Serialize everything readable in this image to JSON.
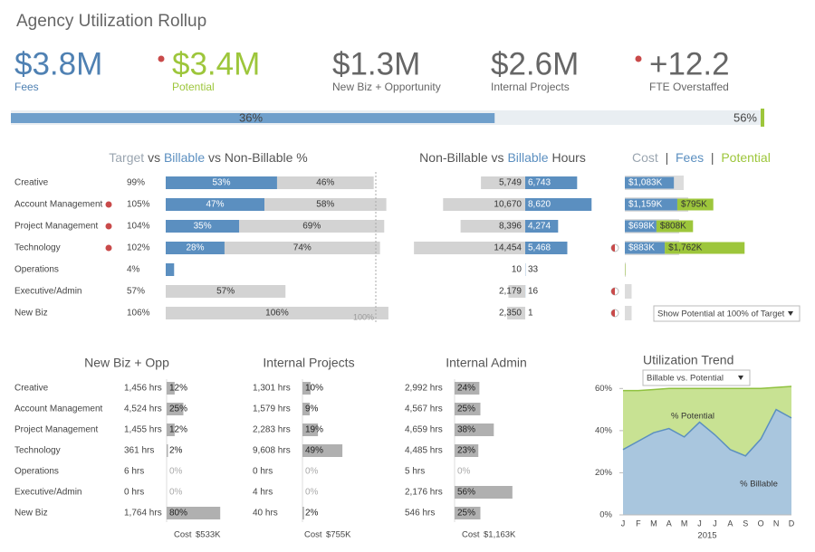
{
  "header": {
    "title": "Agency Utilization Rollup"
  },
  "kpis": [
    {
      "value": "$3.8M",
      "label": "Fees",
      "color": "#4f81b3",
      "flag": false
    },
    {
      "value": "$3.4M",
      "label": "Potential",
      "color": "#9dc63b",
      "flag": true
    },
    {
      "value": "$1.3M",
      "label": "New Biz + Opportunity",
      "color": "#666666",
      "flag": false
    },
    {
      "value": "$2.6M",
      "label": "Internal Projects",
      "color": "#666666",
      "flag": false
    },
    {
      "value": "+12.2",
      "label": "FTE Overstaffed",
      "color": "#666666",
      "flag": true
    }
  ],
  "progress": {
    "values": [
      36,
      56
    ],
    "value_labels": [
      "36%",
      "56%"
    ],
    "colors": [
      "#6f9fcb",
      "#9dc63b"
    ]
  },
  "controls": {
    "potential_filter": "Show Potential at 100% of Target",
    "trend_filter": "Billable vs. Potential"
  },
  "chart_data": [
    {
      "type": "stacked_bar",
      "title": [
        {
          "text": "Target",
          "color": "#9aa5b0"
        },
        {
          "text": " vs ",
          "color": "#555555"
        },
        {
          "text": "Billable",
          "color": "#5b8fc0"
        },
        {
          "text": " vs Non-Billable %",
          "color": "#555555"
        }
      ],
      "categories": [
        "Creative",
        "Account Management",
        "Project Management",
        "Technology",
        "Operations",
        "Executive/Admin",
        "New Biz"
      ],
      "totals": [
        "99%",
        "105%",
        "104%",
        "102%",
        "4%",
        "57%",
        "106%"
      ],
      "flags": [
        false,
        true,
        true,
        true,
        false,
        false,
        false
      ],
      "target": {
        "value": 100,
        "label": "100%"
      },
      "series": [
        {
          "color": "#5b8fc0",
          "values": [
            53,
            47,
            35,
            28,
            4,
            0,
            0
          ],
          "value_labels": [
            "53%",
            "47%",
            "35%",
            "28%",
            null,
            null,
            null
          ]
        },
        {
          "color": "#d3d3d3",
          "values": [
            46,
            58,
            69,
            74,
            0,
            57,
            106
          ],
          "value_labels": [
            "46%",
            "58%",
            "69%",
            "74%",
            null,
            "57%",
            "106%"
          ]
        }
      ]
    },
    {
      "type": "diverging_bar",
      "title": [
        {
          "text": "Non-Billable vs ",
          "color": "#555555"
        },
        {
          "text": "Billable",
          "color": "#5b8fc0"
        },
        {
          "text": " Hours",
          "color": "#555555"
        }
      ],
      "series": [
        {
          "color": "#d3d3d3",
          "values": [
            5749,
            10670,
            8396,
            14454,
            10,
            2179,
            2350
          ],
          "value_labels": [
            "5,749",
            "10,670",
            "8,396",
            "14,454",
            "10",
            "2,179",
            "2,350"
          ]
        },
        {
          "color": "#5b8fc0",
          "values": [
            6743,
            8620,
            4274,
            5468,
            33,
            16,
            1
          ],
          "value_labels": [
            "6,743",
            "8,620",
            "4,274",
            "5,468",
            "33",
            "16",
            "1"
          ]
        }
      ]
    },
    {
      "type": "stacked_bar",
      "title": [
        {
          "text": "Cost",
          "color": "#9aa5b0"
        },
        {
          "text": "  |  ",
          "color": "#555555"
        },
        {
          "text": "Fees",
          "color": "#5b8fc0"
        },
        {
          "text": "  |  ",
          "color": "#555555"
        },
        {
          "text": "Potential",
          "color": "#9dc63b"
        }
      ],
      "background": {
        "color": "#dcdcdc",
        "values": [
          1300,
          1400,
          1200,
          1200,
          20,
          150,
          150
        ]
      },
      "series": [
        {
          "color": "#5b8fc0",
          "values": [
            1083,
            1159,
            698,
            883,
            0,
            0,
            0
          ],
          "value_labels": [
            "$1,083K",
            "$1,159K",
            "$698K",
            "$883K",
            null,
            null,
            null
          ]
        },
        {
          "color": "#9dc63b",
          "values": [
            0,
            795,
            808,
            1762,
            10,
            0,
            0
          ],
          "value_labels": [
            null,
            "$795K",
            "$808K",
            "$1,762K",
            null,
            null,
            null
          ]
        }
      ]
    },
    {
      "type": "bar",
      "title": "New Biz + Opp",
      "color": "#b0b0b0",
      "categories": [
        "Creative",
        "Account Management",
        "Project Management",
        "Technology",
        "Operations",
        "Executive/Admin",
        "New Biz"
      ],
      "hours": [
        "1,456 hrs",
        "4,524 hrs",
        "1,455 hrs",
        "361 hrs",
        "6 hrs",
        "0 hrs",
        "1,764 hrs"
      ],
      "values": [
        12,
        25,
        12,
        2,
        0,
        0,
        80
      ],
      "value_labels": [
        "12%",
        "25%",
        "12%",
        "2%",
        "0%",
        "0%",
        "80%"
      ],
      "cost_label": "Cost",
      "cost": "$533K"
    },
    {
      "type": "bar",
      "title": "Internal Projects",
      "color": "#b0b0b0",
      "hours": [
        "1,301 hrs",
        "1,579 hrs",
        "2,283 hrs",
        "9,608 hrs",
        "0 hrs",
        "4 hrs",
        "40 hrs"
      ],
      "values": [
        10,
        9,
        19,
        49,
        0,
        0,
        2
      ],
      "value_labels": [
        "10%",
        "9%",
        "19%",
        "49%",
        "0%",
        "0%",
        "2%"
      ],
      "cost_label": "Cost",
      "cost": "$755K"
    },
    {
      "type": "bar",
      "title": "Internal Admin",
      "color": "#b0b0b0",
      "hours": [
        "2,992 hrs",
        "4,567 hrs",
        "4,659 hrs",
        "4,485 hrs",
        "5 hrs",
        "2,176 hrs",
        "546 hrs"
      ],
      "values": [
        24,
        25,
        38,
        23,
        0,
        56,
        25
      ],
      "value_labels": [
        "24%",
        "25%",
        "38%",
        "23%",
        "0%",
        "56%",
        "25%"
      ],
      "cost_label": "Cost",
      "cost": "$1,163K"
    },
    {
      "type": "area",
      "title": "Utilization Trend",
      "categories": [
        "J",
        "F",
        "M",
        "A",
        "M",
        "J",
        "J",
        "A",
        "S",
        "O",
        "N",
        "D"
      ],
      "xlabel": "2015",
      "ylim": [
        0,
        67
      ],
      "yticks": [
        {
          "value": 0,
          "label": "0%"
        },
        {
          "value": 20,
          "label": "20%"
        },
        {
          "value": 40,
          "label": "40%"
        },
        {
          "value": 60,
          "label": "60%"
        }
      ],
      "series": [
        {
          "name": "% Potential",
          "color": "#c8e293",
          "line": "#8fc13f",
          "values": [
            59,
            59,
            59.5,
            60,
            60,
            60,
            60,
            60,
            60,
            60,
            60.5,
            61
          ]
        },
        {
          "name": "% Billable",
          "color": "#a9c6de",
          "line": "#5b8fc0",
          "values": [
            31,
            35,
            39,
            41,
            37,
            44,
            38,
            31,
            28,
            36,
            50,
            46
          ]
        }
      ]
    }
  ]
}
